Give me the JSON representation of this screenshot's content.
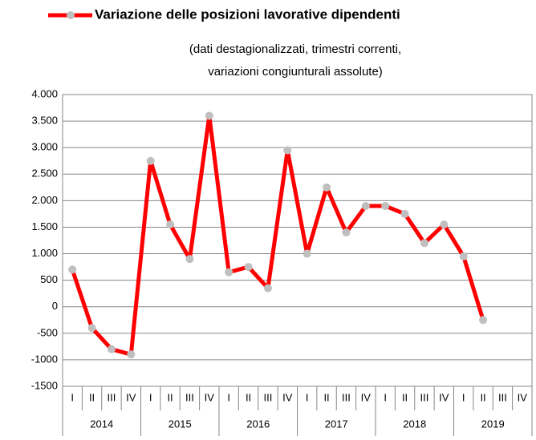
{
  "chart_data": {
    "type": "line",
    "subtitle": [
      "(dati destagionalizzati, trimestri correnti,",
      "variazioni congiunturali assolute)"
    ],
    "categories": [
      "I",
      "II",
      "III",
      "IV",
      "I",
      "II",
      "III",
      "IV",
      "I",
      "II",
      "III",
      "IV",
      "I",
      "II",
      "III",
      "IV",
      "I",
      "II",
      "III",
      "IV",
      "I",
      "II",
      "III",
      "IV"
    ],
    "years": [
      "2014",
      "2015",
      "2016",
      "2017",
      "2018",
      "2019"
    ],
    "series": [
      {
        "name": "Variazione delle posizioni lavorative dipendenti",
        "color": "#ff0000",
        "marker_color": "#bfbfbf",
        "values": [
          700,
          -400,
          -800,
          -900,
          2750,
          1550,
          900,
          3600,
          650,
          750,
          350,
          2950,
          1000,
          2250,
          1400,
          1900,
          1900,
          1750,
          1200,
          1550,
          950,
          -250,
          null,
          null
        ]
      }
    ],
    "ylim": [
      -1500,
      4000
    ],
    "yticks": [
      {
        "value": 4000,
        "label": "4.000"
      },
      {
        "value": 3500,
        "label": "3.500"
      },
      {
        "value": 3000,
        "label": "3.000"
      },
      {
        "value": 2500,
        "label": "2.500"
      },
      {
        "value": 2000,
        "label": "2.000"
      },
      {
        "value": 1500,
        "label": "1.500"
      },
      {
        "value": 1000,
        "label": "1.000"
      },
      500,
      0,
      -500,
      -1000,
      -1500
    ],
    "grid": true
  }
}
